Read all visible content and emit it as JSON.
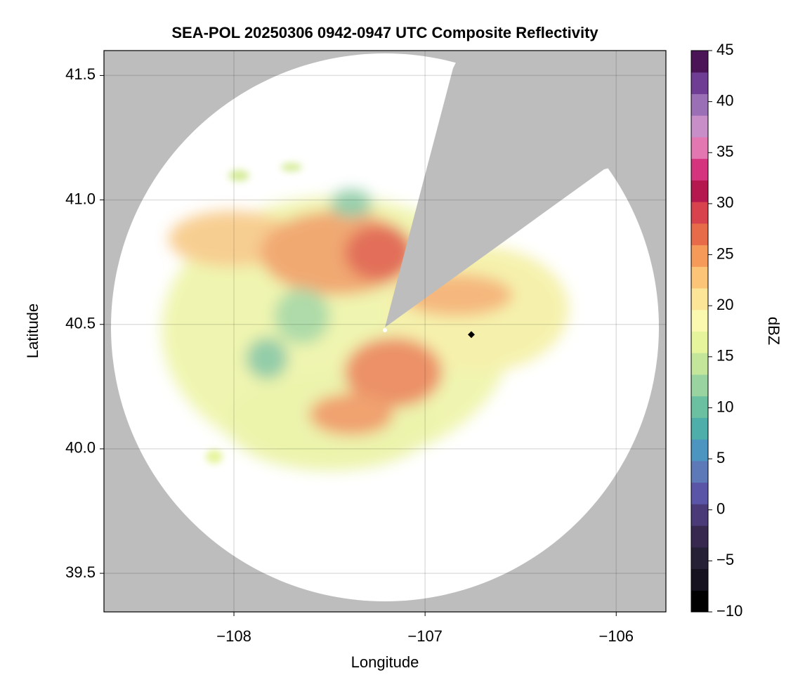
{
  "chart_data": {
    "type": "radar_map",
    "title": "SEA-POL 20250306 0942-0947 UTC Composite Reflectivity",
    "xlabel": "Longitude",
    "ylabel": "Latitude",
    "xlim": [
      -108.68,
      -105.74
    ],
    "ylim": [
      39.345,
      41.6
    ],
    "xticks": [
      {
        "value": -108,
        "label": "−108"
      },
      {
        "value": -107,
        "label": "−107"
      },
      {
        "value": -106,
        "label": "−106"
      }
    ],
    "yticks": [
      39.5,
      {
        "value": 40,
        "label": "40.0"
      },
      40.5,
      {
        "value": 41,
        "label": "41.0"
      },
      41.5
    ],
    "grid": true,
    "background": "#bdbdbd",
    "colorbar": {
      "label": "dBZ",
      "lim": [
        -10,
        45
      ],
      "ticks": [
        {
          "value": -10,
          "label": "−10"
        },
        {
          "value": -5,
          "label": "−5"
        },
        0,
        5,
        10,
        15,
        20,
        25,
        30,
        35,
        40,
        45
      ],
      "colors": [
        "#000000",
        "#16121f",
        "#262036",
        "#36284f",
        "#4a3a78",
        "#5a55a6",
        "#5d79b8",
        "#4b95c0",
        "#4eaeaa",
        "#6cc0a2",
        "#98d3a0",
        "#c3e69b",
        "#e6f49c",
        "#fbf8b0",
        "#fde598",
        "#fbc477",
        "#f59a59",
        "#e86b49",
        "#d7424c",
        "#b5174f",
        "#d6337f",
        "#e377b2",
        "#c88ec7",
        "#9b6fb5",
        "#6f3d93",
        "#4a1456"
      ]
    }
  }
}
